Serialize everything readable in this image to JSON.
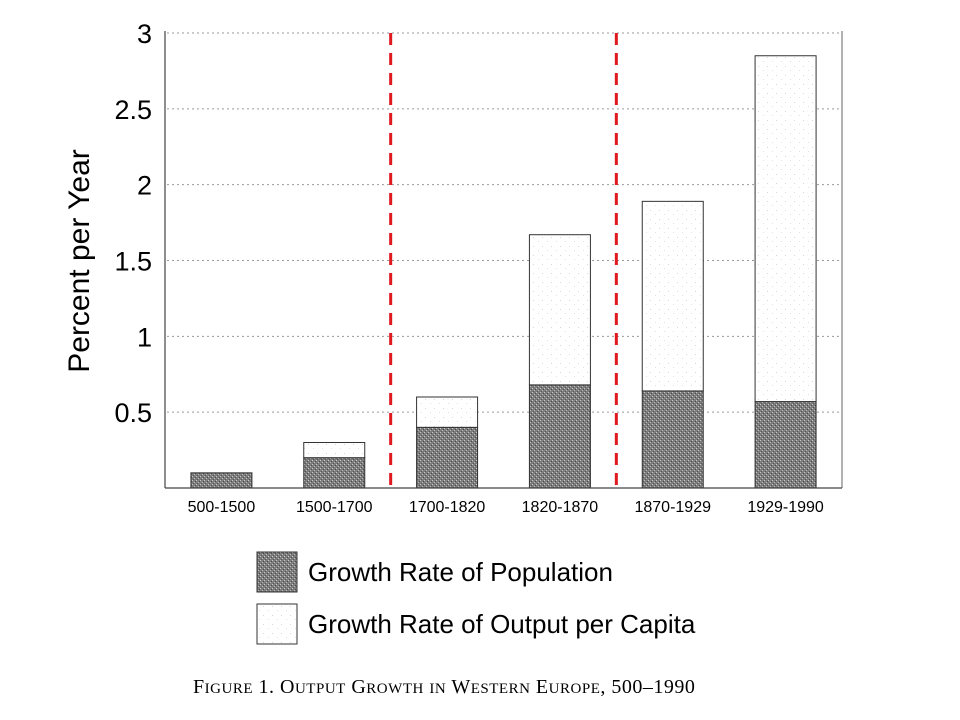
{
  "chart_data": {
    "type": "bar",
    "stacked": true,
    "title": "",
    "caption": {
      "prefix": "Figure 1.",
      "text": "Output Growth in Western Europe, 500–1990"
    },
    "xlabel": "",
    "ylabel": "Percent per Year",
    "ylim": [
      0,
      3
    ],
    "yticks": [
      "0.5",
      "1",
      "1.5",
      "2",
      "2.5",
      "3"
    ],
    "grid": true,
    "categories": [
      "500-1500",
      "1500-1700",
      "1700-1820",
      "1820-1870",
      "1870-1929",
      "1929-1990"
    ],
    "series": [
      {
        "name": "Growth Rate of Population",
        "values": [
          0.1,
          0.2,
          0.4,
          0.68,
          0.64,
          0.57
        ],
        "fill": "#8a8a8a"
      },
      {
        "name": "Growth Rate of Output per Capita",
        "values": [
          0.0,
          0.1,
          0.2,
          0.99,
          1.25,
          2.28
        ],
        "fill": "#ffffff"
      }
    ],
    "dividers_after_category": [
      1,
      3
    ],
    "divider_color": "#e0191f",
    "legend_position": "bottom"
  }
}
